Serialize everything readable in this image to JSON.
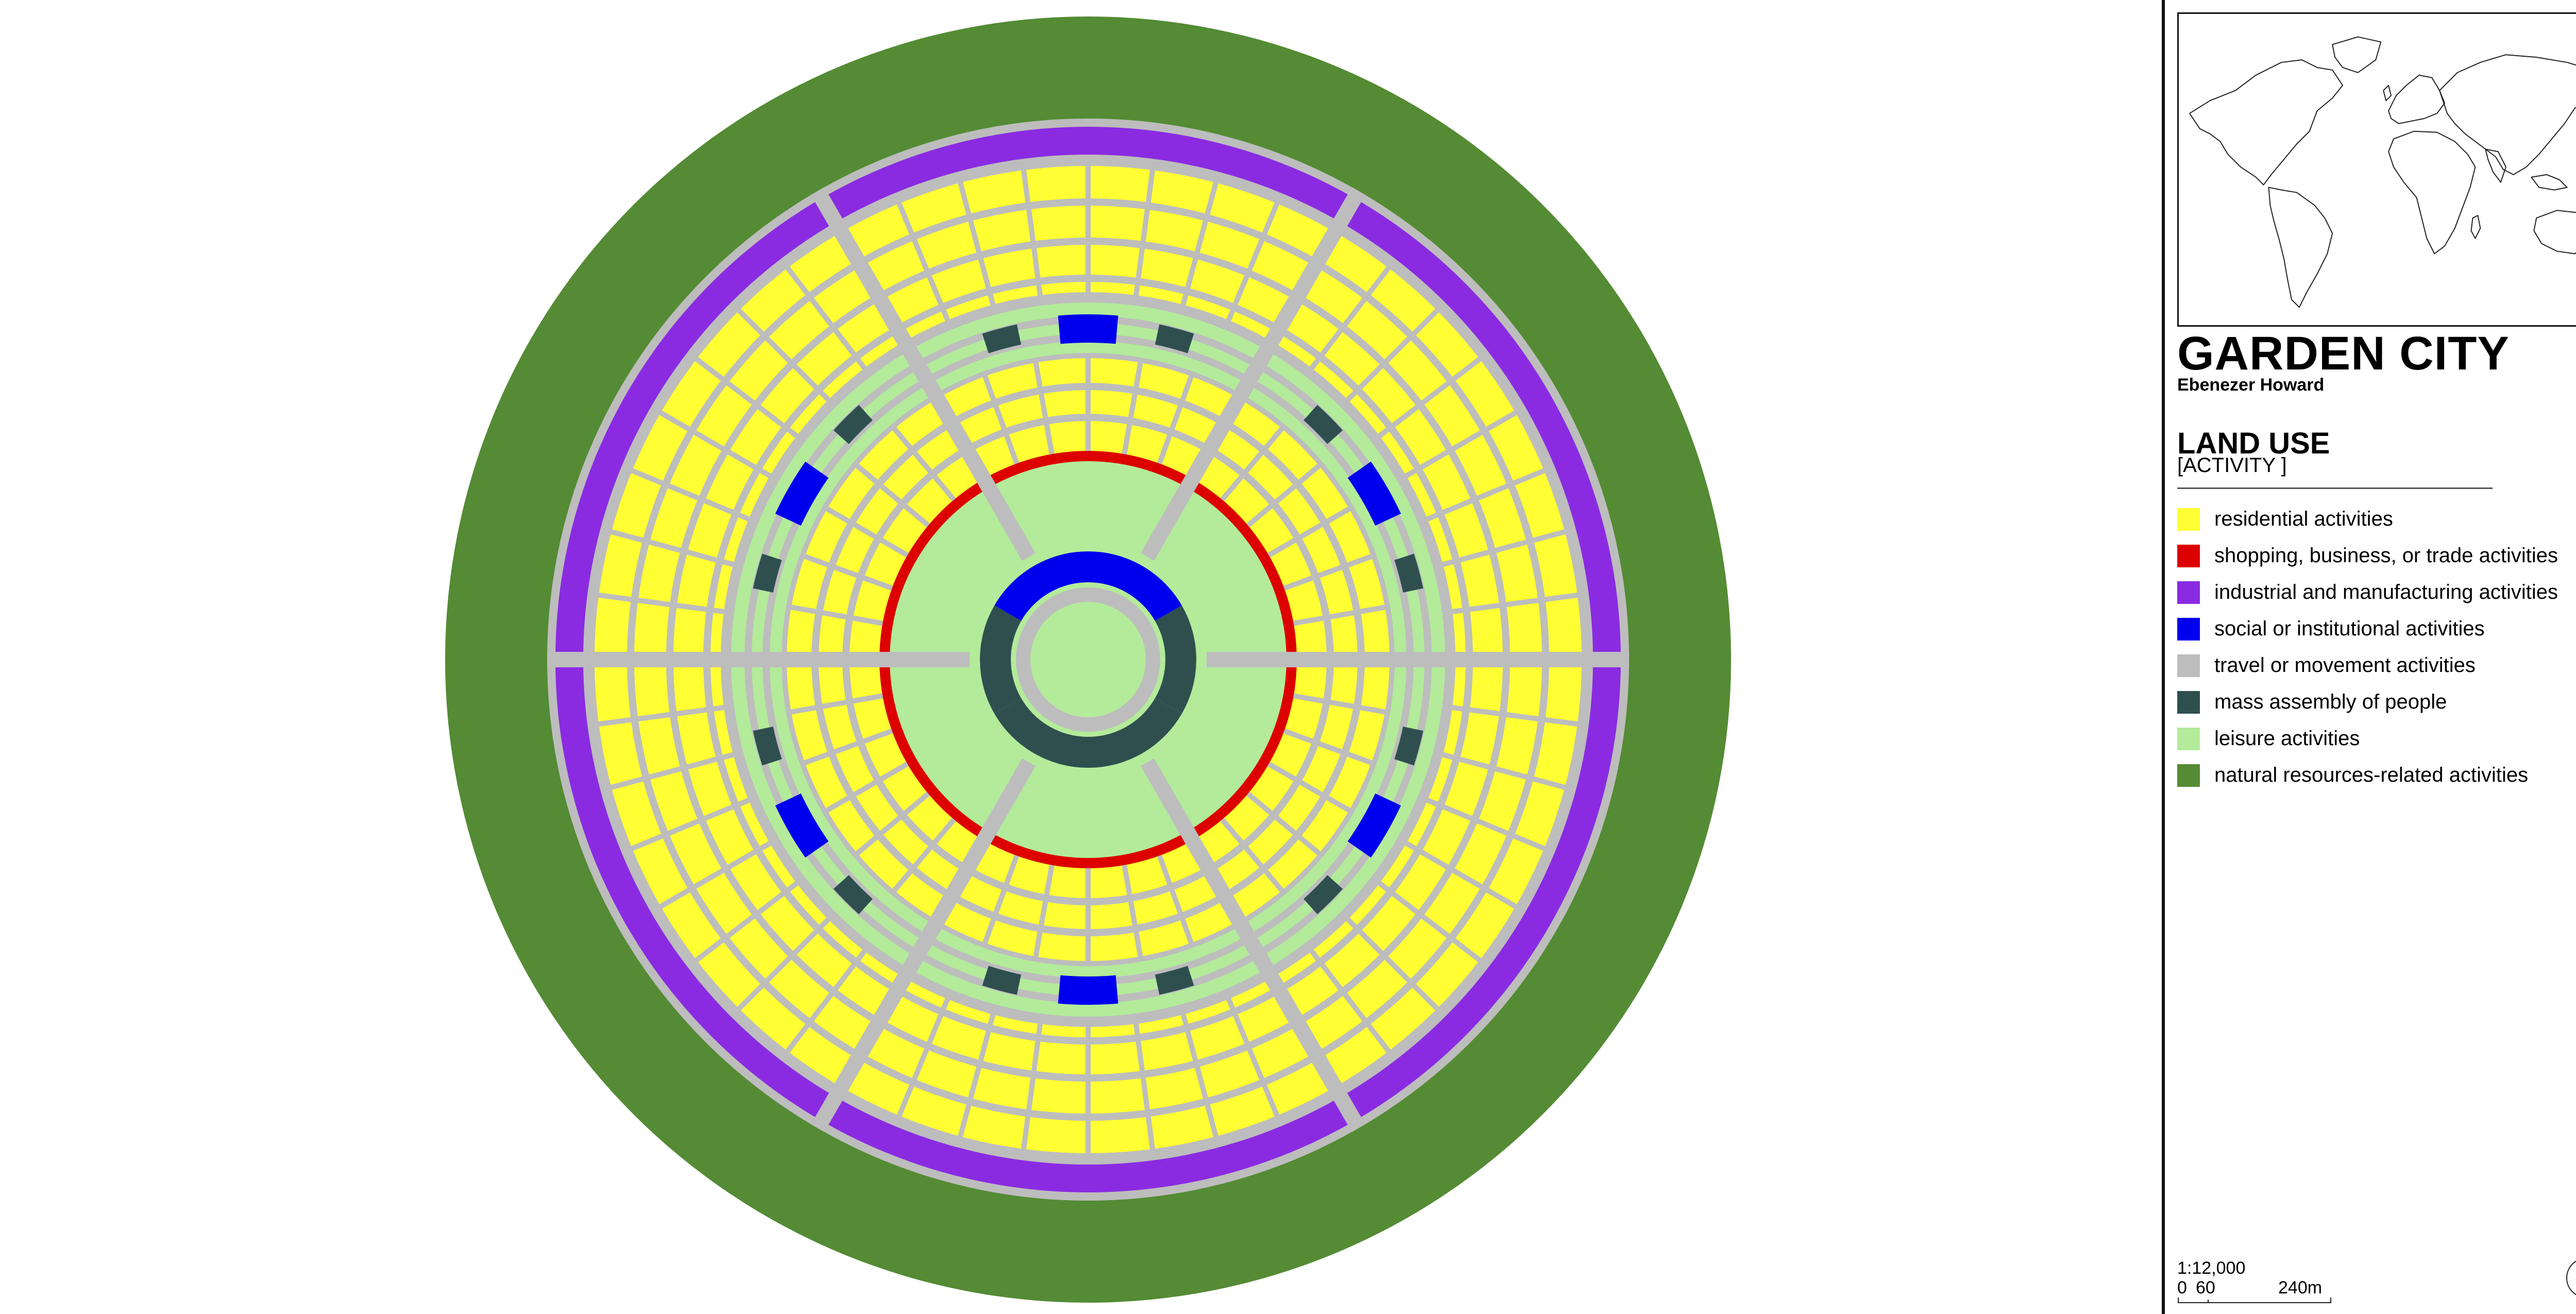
{
  "title": "GARDEN CITY",
  "author": "Ebenezer Howard",
  "legend": {
    "title": "LAND USE",
    "subtitle": "[ACTIVITY ]",
    "items": [
      {
        "label": "residential activities",
        "color": "#ffff33"
      },
      {
        "label": "shopping, business, or trade activities",
        "color": "#dd0000"
      },
      {
        "label": "industrial and manufacturing activities",
        "color": "#8a2be2"
      },
      {
        "label": "social or institutional activities",
        "color": "#0000ee"
      },
      {
        "label": "travel or movement activities",
        "color": "#bdbdbd"
      },
      {
        "label": "mass assembly of people",
        "color": "#2f4f4f"
      },
      {
        "label": "leisure activities",
        "color": "#b3eb9a"
      },
      {
        "label": "natural resources-related activities",
        "color": "#548b34"
      }
    ]
  },
  "scale": {
    "ratio": "1:12,000",
    "ticks": [
      "0",
      "60",
      "240m"
    ]
  },
  "icons": {
    "north_arrow": "north-arrow-icon",
    "inset": "world-map-outline"
  }
}
